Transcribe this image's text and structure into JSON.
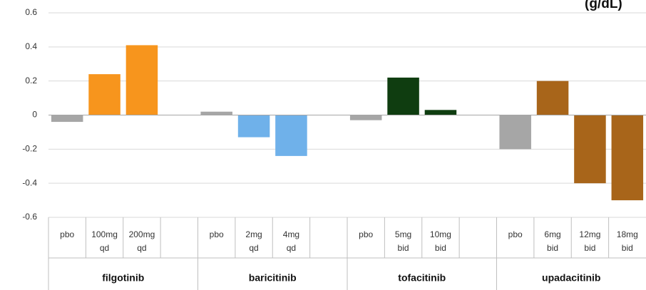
{
  "chart_data": {
    "type": "bar",
    "title_fragment": "(g/dL)",
    "ylim": [
      -0.6,
      0.6
    ],
    "yticks": [
      "0.6",
      "0.4",
      "0.2",
      "0",
      "-0.2",
      "-0.4",
      "-0.6"
    ],
    "ytick_values": [
      0.6,
      0.4,
      0.2,
      0,
      -0.2,
      -0.4,
      -0.6
    ],
    "grid": true,
    "groups": [
      {
        "name": "filgotinib",
        "categories": [
          {
            "line1": "pbo",
            "line2": "",
            "value": -0.04,
            "color": "#a6a6a6"
          },
          {
            "line1": "100mg",
            "line2": "qd",
            "value": 0.24,
            "color": "#f7951d"
          },
          {
            "line1": "200mg",
            "line2": "qd",
            "value": 0.41,
            "color": "#f7951d"
          },
          {
            "line1": "",
            "line2": "",
            "value": null,
            "color": ""
          }
        ]
      },
      {
        "name": "baricitinib",
        "categories": [
          {
            "line1": "pbo",
            "line2": "",
            "value": 0.02,
            "color": "#a6a6a6"
          },
          {
            "line1": "2mg",
            "line2": "qd",
            "value": -0.13,
            "color": "#6fb1ea"
          },
          {
            "line1": "4mg",
            "line2": "qd",
            "value": -0.24,
            "color": "#6fb1ea"
          },
          {
            "line1": "",
            "line2": "",
            "value": null,
            "color": ""
          }
        ]
      },
      {
        "name": "tofacitinib",
        "categories": [
          {
            "line1": "pbo",
            "line2": "",
            "value": -0.03,
            "color": "#a6a6a6"
          },
          {
            "line1": "5mg",
            "line2": "bid",
            "value": 0.22,
            "color": "#0f3d10"
          },
          {
            "line1": "10mg",
            "line2": "bid",
            "value": 0.03,
            "color": "#0f3d10"
          },
          {
            "line1": "",
            "line2": "",
            "value": null,
            "color": ""
          }
        ]
      },
      {
        "name": "upadacitinib",
        "categories": [
          {
            "line1": "pbo",
            "line2": "",
            "value": -0.2,
            "color": "#a6a6a6"
          },
          {
            "line1": "6mg",
            "line2": "bid",
            "value": 0.2,
            "color": "#a8651a"
          },
          {
            "line1": "12mg",
            "line2": "bid",
            "value": -0.4,
            "color": "#a8651a"
          },
          {
            "line1": "18mg",
            "line2": "bid",
            "value": -0.5,
            "color": "#a8651a"
          }
        ]
      }
    ]
  }
}
